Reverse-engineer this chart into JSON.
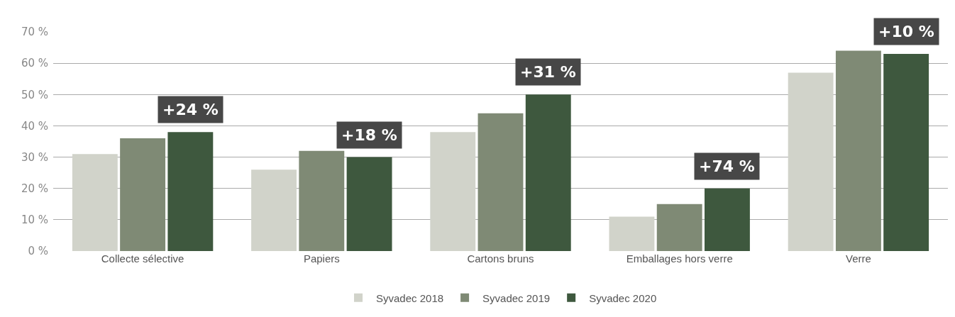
{
  "chart_data": {
    "type": "bar",
    "categories": [
      "Collecte sélective",
      "Papiers",
      "Cartons bruns",
      "Emballages hors verre",
      "Verre"
    ],
    "series": [
      {
        "name": "Syvadec 2018",
        "color": "#d1d3ca",
        "values": [
          31,
          26,
          38,
          11,
          57
        ]
      },
      {
        "name": "Syvadec 2019",
        "color": "#7f8a75",
        "values": [
          36,
          32,
          44,
          15,
          64
        ]
      },
      {
        "name": "Syvadec 2020",
        "color": "#3e583e",
        "values": [
          38,
          30,
          50,
          20,
          63
        ]
      }
    ],
    "ylim": [
      0,
      70
    ],
    "yticks": [
      {
        "value": 0,
        "label": "0 %"
      },
      {
        "value": 10,
        "label": "10 %"
      },
      {
        "value": 20,
        "label": "20 %"
      },
      {
        "value": 30,
        "label": "30 %"
      },
      {
        "value": 40,
        "label": "40 %"
      },
      {
        "value": 50,
        "label": "50 %"
      },
      {
        "value": 60,
        "label": "60 %"
      },
      {
        "value": 70,
        "label": "70 %"
      }
    ],
    "grid": "y",
    "legend": "bottom",
    "annotations": [
      "+24 %",
      "+18 %",
      "+31 %",
      "+74 %",
      "+10 %"
    ]
  }
}
